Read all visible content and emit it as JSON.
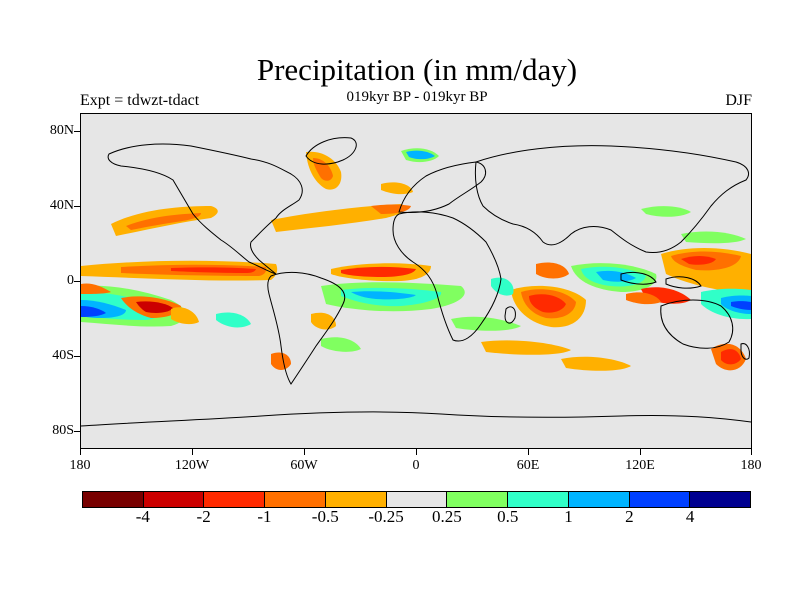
{
  "title": "Precipitation (in mm/day)",
  "subtitle": "019kyr BP - 019kyr BP",
  "left_label": "Expt = tdwzt-tdact",
  "right_label": "DJF",
  "colors": {
    "ocean_background": "#e6e6e6",
    "coastline": "#000000"
  },
  "lat_labels": [
    "80N",
    "40N",
    "0",
    "40S",
    "80S"
  ],
  "lon_labels": [
    "180",
    "120W",
    "60W",
    "0",
    "60E",
    "120E",
    "180"
  ],
  "colorbar": {
    "colors": [
      "#780000",
      "#cc0000",
      "#ff2a00",
      "#ff7000",
      "#ffb000",
      "#e6e6e6",
      "#80ff60",
      "#30ffc8",
      "#00b4ff",
      "#0040ff",
      "#000090"
    ],
    "labels": [
      "-4",
      "-2",
      "-1",
      "-0.5",
      "-0.25",
      "0.25",
      "0.5",
      "1",
      "2",
      "4"
    ]
  }
}
